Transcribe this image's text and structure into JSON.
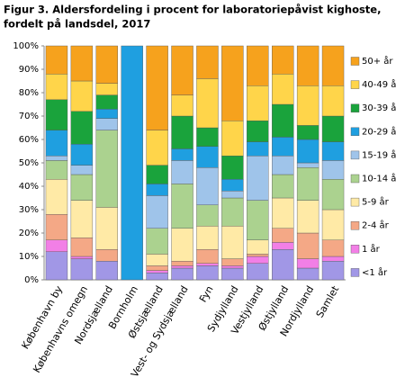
{
  "chart_data": {
    "type": "stacked-bar",
    "title": [
      "Figur 3. Aldersfordeling i procent for laboratoriepåvist kighoste,",
      "fordelt på landsdel, 2017"
    ],
    "categories": [
      "København by",
      "Københavns omegn",
      "Nordsjælland",
      "Bornholm",
      "Østsjælland",
      "Vest- og Sydsjælland",
      "Fyn",
      "Sydjylland",
      "Vestjylland",
      "Østjylland",
      "Nordjylland",
      "Samlet"
    ],
    "series": [
      {
        "name": "<1 år",
        "color": "#a197e6",
        "values": [
          12,
          9,
          8,
          0,
          3,
          5,
          6,
          5,
          7,
          13,
          5,
          8
        ]
      },
      {
        "name": "1 år",
        "color": "#f27fe6",
        "values": [
          5,
          1,
          0,
          0,
          1,
          1,
          1,
          1,
          3,
          3,
          4,
          2
        ]
      },
      {
        "name": "2-4 år",
        "color": "#f4a886",
        "values": [
          11,
          8,
          5,
          0,
          2,
          2,
          6,
          3,
          1,
          6,
          11,
          7
        ]
      },
      {
        "name": "5-9 år",
        "color": "#ffeaa6",
        "values": [
          15,
          16,
          18,
          0,
          5,
          14,
          10,
          14,
          6,
          13,
          14,
          13
        ]
      },
      {
        "name": "10-14 år",
        "color": "#abd28f",
        "values": [
          8,
          11,
          33,
          0,
          11,
          19,
          9,
          12,
          17,
          10,
          14,
          13
        ]
      },
      {
        "name": "15-19 år",
        "color": "#9fc4ea",
        "values": [
          2,
          4,
          5,
          0,
          14,
          10,
          16,
          3,
          19,
          8,
          2,
          8
        ]
      },
      {
        "name": "20-29 år",
        "color": "#1f9fe0",
        "values": [
          11,
          9,
          4,
          100,
          5,
          5,
          9,
          5,
          6,
          8,
          10,
          8
        ]
      },
      {
        "name": "30-39 år",
        "color": "#1aa33c",
        "values": [
          13,
          14,
          6,
          0,
          8,
          14,
          8,
          10,
          9,
          14,
          6,
          11
        ]
      },
      {
        "name": "40-49 år",
        "color": "#ffd54a",
        "values": [
          11,
          13,
          5,
          0,
          15,
          9,
          21,
          15,
          15,
          13,
          17,
          13
        ]
      },
      {
        "name": "50+ år",
        "color": "#f6a21d",
        "values": [
          12,
          15,
          16,
          0,
          36,
          21,
          14,
          32,
          17,
          12,
          17,
          17
        ]
      }
    ],
    "ylim": [
      0,
      100
    ],
    "yticks": [
      {
        "value": 0,
        "label": "0%"
      },
      {
        "value": 10,
        "label": "10%"
      },
      {
        "value": 20,
        "label": "20%"
      },
      {
        "value": 30,
        "label": "30%"
      },
      {
        "value": 40,
        "label": "40%"
      },
      {
        "value": 50,
        "label": "50%"
      },
      {
        "value": 60,
        "label": "60%"
      },
      {
        "value": 70,
        "label": "70%"
      },
      {
        "value": 80,
        "label": "80%"
      },
      {
        "value": 90,
        "label": "90%"
      },
      {
        "value": 100,
        "label": "100%"
      }
    ],
    "legend": "right"
  }
}
